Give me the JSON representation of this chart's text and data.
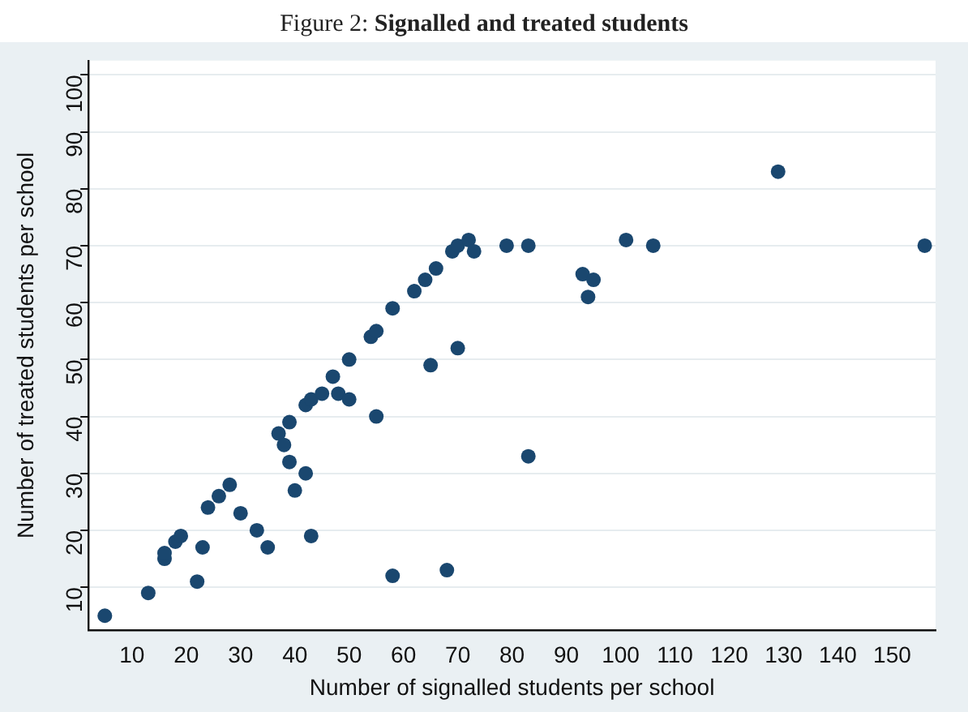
{
  "chart_data": {
    "type": "scatter",
    "title": "Figure 2: Signalled and treated students",
    "xlabel": "Number of signalled students per school",
    "ylabel": "Number of treated students per school",
    "x": [
      5,
      13,
      16,
      16,
      18,
      19,
      22,
      23,
      24,
      26,
      28,
      30,
      33,
      35,
      37,
      38,
      39,
      39,
      40,
      42,
      42,
      43,
      43,
      45,
      47,
      48,
      50,
      50,
      54,
      55,
      55,
      58,
      58,
      62,
      64,
      66,
      65,
      68,
      69,
      70,
      70,
      72,
      73,
      79,
      83,
      83,
      93,
      94,
      95,
      101,
      106,
      129,
      156
    ],
    "series": [
      {
        "color": "#1a476f",
        "values": [
          5,
          9,
          15,
          16,
          18,
          19,
          11,
          17,
          24,
          26,
          28,
          23,
          20,
          17,
          37,
          35,
          39,
          32,
          27,
          30,
          42,
          43,
          19,
          44,
          47,
          44,
          50,
          43,
          54,
          55,
          40,
          12,
          59,
          62,
          64,
          66,
          49,
          13,
          69,
          70,
          52,
          71,
          69,
          70,
          70,
          33,
          65,
          61,
          64,
          71,
          70,
          83,
          70
        ]
      }
    ],
    "xlim": [
      2,
      158
    ],
    "xticks": [
      10,
      20,
      30,
      40,
      50,
      60,
      70,
      80,
      90,
      100,
      110,
      120,
      130,
      140,
      150
    ],
    "ylim": [
      2.5,
      102.5
    ],
    "yticks": [
      10,
      20,
      30,
      40,
      50,
      60,
      70,
      80,
      90,
      100
    ],
    "grid": "y",
    "legend": false,
    "marker": "circle"
  }
}
